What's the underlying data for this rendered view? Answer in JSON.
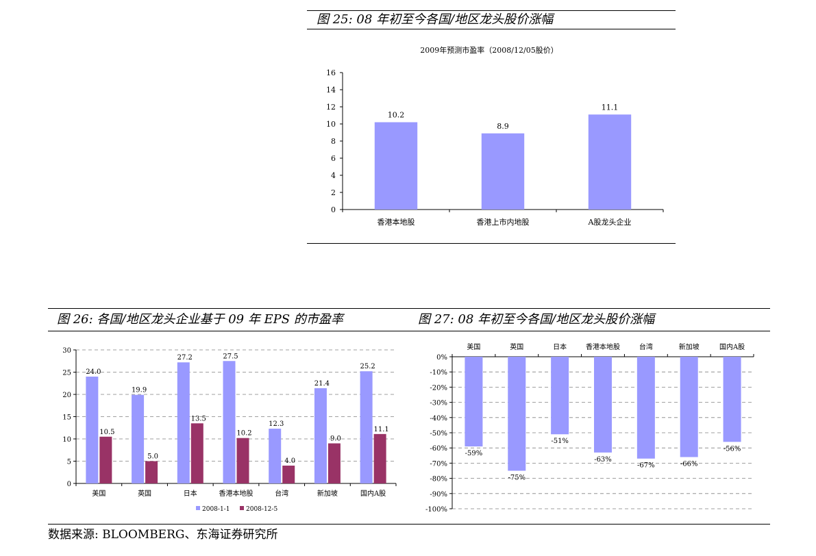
{
  "figure25": {
    "caption": "图 25: 08 年初至今各国/地区龙头股价涨幅"
  },
  "figure26": {
    "caption": "图 26: 各国/地区龙头企业基于 09 年 EPS 的市盈率"
  },
  "figure27": {
    "caption": "图 27: 08 年初至今各国/地区龙头股价涨幅"
  },
  "source": "数据来源: BLOOMBERG、东海证券研究所",
  "chart_data": [
    {
      "id": "fig25",
      "type": "bar",
      "title": "2009年预测市盈率（2008/12/05股价）",
      "categories": [
        "香港本地股",
        "香港上市内地股",
        "A股龙头企业"
      ],
      "values": [
        10.2,
        8.9,
        11.1
      ],
      "value_labels": [
        "10.2",
        "8.9",
        "11.1"
      ],
      "ylim": [
        0,
        16
      ],
      "yticks": [
        0,
        2,
        4,
        6,
        8,
        10,
        12,
        14,
        16
      ],
      "grid": false,
      "colors": {
        "bar": "#9999ff"
      }
    },
    {
      "id": "fig26",
      "type": "bar",
      "categories": [
        "美国",
        "英国",
        "日本",
        "香港本地股",
        "台湾",
        "新加坡",
        "国内A股"
      ],
      "series": [
        {
          "name": "2008-1-1",
          "values": [
            24.0,
            19.9,
            27.2,
            27.5,
            12.3,
            21.4,
            25.2
          ],
          "labels": [
            "24.0",
            "19.9",
            "27.2",
            "27.5",
            "12.3",
            "21.4",
            "25.2"
          ],
          "color": "#9999ff"
        },
        {
          "name": "2008-12-5",
          "values": [
            10.5,
            5.0,
            13.5,
            10.2,
            4.0,
            9.0,
            11.1
          ],
          "labels": [
            "10.5",
            "5.0",
            "13.5",
            "10.2",
            "4.0",
            "9.0",
            "11.1"
          ],
          "color": "#993366"
        }
      ],
      "ylim": [
        0,
        30
      ],
      "yticks": [
        0,
        5,
        10,
        15,
        20,
        25,
        30
      ],
      "grid": true,
      "legend": "bottom"
    },
    {
      "id": "fig27",
      "type": "bar",
      "categories": [
        "美国",
        "英国",
        "日本",
        "香港本地股",
        "台湾",
        "新加坡",
        "国内A股"
      ],
      "values": [
        -59,
        -75,
        -51,
        -63,
        -67,
        -66,
        -56
      ],
      "value_labels": [
        "-59%",
        "-75%",
        "-51%",
        "-63%",
        "-67%",
        "-66%",
        "-56%"
      ],
      "ylim": [
        -100,
        0
      ],
      "yticks": [
        0,
        -10,
        -20,
        -30,
        -40,
        -50,
        -60,
        -70,
        -80,
        -90,
        -100
      ],
      "ytick_labels": [
        "0%",
        "-10%",
        "-20%",
        "-30%",
        "-40%",
        "-50%",
        "-60%",
        "-70%",
        "-80%",
        "-90%",
        "-100%"
      ],
      "grid": true,
      "category_axis_position": "top",
      "colors": {
        "bar": "#9999ff"
      }
    }
  ]
}
